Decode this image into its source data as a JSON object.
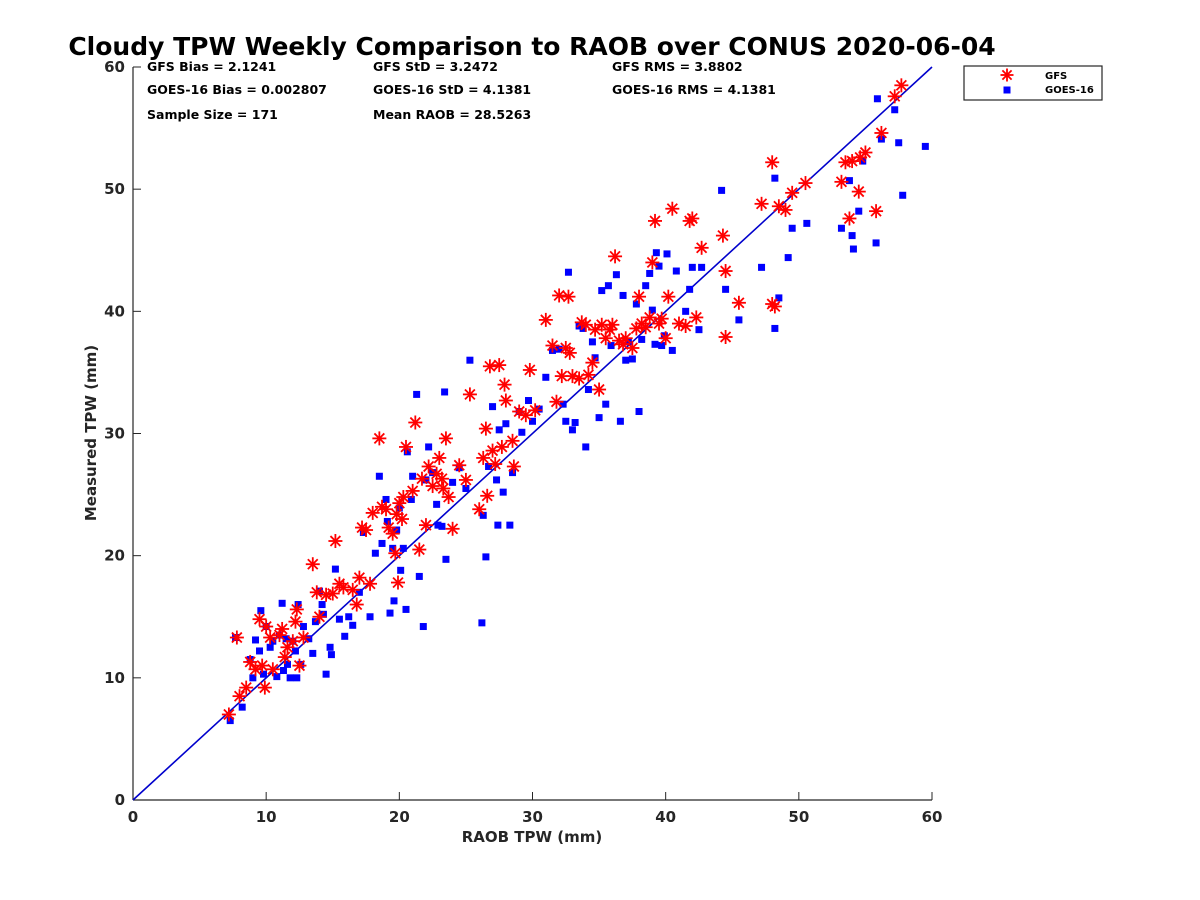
{
  "chart_data": {
    "type": "scatter",
    "title": "Cloudy TPW Weekly Comparison to RAOB over CONUS 2020-06-04",
    "xlabel": "RAOB TPW (mm)",
    "ylabel": "Measured TPW (mm)",
    "xlim": [
      0,
      60
    ],
    "ylim": [
      0,
      60
    ],
    "xticks": [
      "0",
      "10",
      "20",
      "30",
      "40",
      "50",
      "60"
    ],
    "yticks": [
      "0",
      "10",
      "20",
      "30",
      "40",
      "50",
      "60"
    ],
    "grid": false,
    "legend_position": "outside top-right",
    "stats": [
      [
        "GFS Bias = 2.1241",
        "GFS StD = 3.2472",
        "GFS RMS = 3.8802"
      ],
      [
        "GOES-16 Bias = 0.002807",
        "GOES-16 StD = 4.1381",
        "GOES-16 RMS = 4.1381"
      ],
      [
        "Sample Size = 171",
        "Mean RAOB = 28.5263",
        ""
      ]
    ],
    "reference_line": {
      "x": [
        0,
        60
      ],
      "y": [
        0,
        60
      ],
      "color": "#0000cc"
    },
    "series": [
      {
        "name": "GFS",
        "marker": "asterisk",
        "color": "#ff0000",
        "points": [
          [
            7.2,
            7.0
          ],
          [
            7.8,
            13.3
          ],
          [
            8.0,
            8.5
          ],
          [
            8.5,
            9.2
          ],
          [
            8.8,
            11.3
          ],
          [
            9.2,
            10.7
          ],
          [
            9.5,
            14.8
          ],
          [
            9.7,
            11.0
          ],
          [
            9.9,
            9.2
          ],
          [
            10.0,
            14.2
          ],
          [
            10.3,
            13.3
          ],
          [
            10.5,
            10.7
          ],
          [
            11.0,
            13.5
          ],
          [
            11.2,
            14.0
          ],
          [
            11.4,
            11.7
          ],
          [
            11.6,
            12.5
          ],
          [
            12.0,
            13.0
          ],
          [
            12.2,
            14.6
          ],
          [
            12.3,
            15.6
          ],
          [
            12.5,
            11.0
          ],
          [
            12.8,
            13.3
          ],
          [
            13.5,
            19.3
          ],
          [
            13.8,
            17.0
          ],
          [
            14.0,
            15.0
          ],
          [
            14.5,
            16.8
          ],
          [
            15.0,
            16.9
          ],
          [
            15.2,
            21.2
          ],
          [
            15.5,
            17.7
          ],
          [
            15.8,
            17.4
          ],
          [
            16.5,
            17.2
          ],
          [
            16.8,
            16.0
          ],
          [
            17.0,
            18.2
          ],
          [
            17.2,
            22.3
          ],
          [
            17.5,
            22.1
          ],
          [
            17.8,
            17.7
          ],
          [
            18.0,
            23.5
          ],
          [
            18.5,
            29.6
          ],
          [
            18.7,
            24.0
          ],
          [
            19.0,
            23.8
          ],
          [
            19.2,
            22.3
          ],
          [
            19.5,
            21.8
          ],
          [
            19.7,
            20.2
          ],
          [
            19.8,
            23.4
          ],
          [
            19.9,
            17.8
          ],
          [
            20.0,
            24.3
          ],
          [
            20.2,
            23.0
          ],
          [
            20.3,
            24.8
          ],
          [
            20.5,
            28.9
          ],
          [
            21.0,
            25.3
          ],
          [
            21.2,
            30.9
          ],
          [
            21.5,
            20.5
          ],
          [
            21.7,
            26.3
          ],
          [
            22.0,
            22.5
          ],
          [
            22.2,
            27.3
          ],
          [
            22.5,
            25.7
          ],
          [
            22.8,
            26.7
          ],
          [
            23.0,
            28.0
          ],
          [
            23.2,
            26.3
          ],
          [
            23.3,
            25.5
          ],
          [
            23.5,
            29.6
          ],
          [
            23.7,
            24.8
          ],
          [
            24.0,
            22.2
          ],
          [
            24.5,
            27.4
          ],
          [
            25.0,
            26.2
          ],
          [
            25.3,
            33.2
          ],
          [
            26.0,
            23.8
          ],
          [
            26.3,
            28.0
          ],
          [
            26.5,
            30.4
          ],
          [
            26.6,
            24.9
          ],
          [
            26.8,
            35.5
          ],
          [
            27.0,
            28.6
          ],
          [
            27.2,
            27.5
          ],
          [
            27.5,
            35.6
          ],
          [
            27.7,
            28.9
          ],
          [
            27.9,
            34.0
          ],
          [
            28.0,
            32.7
          ],
          [
            28.5,
            29.4
          ],
          [
            28.6,
            27.3
          ],
          [
            29.0,
            31.8
          ],
          [
            29.5,
            31.5
          ],
          [
            29.8,
            35.2
          ],
          [
            30.2,
            31.9
          ],
          [
            31.0,
            39.3
          ],
          [
            31.5,
            37.2
          ],
          [
            31.8,
            32.6
          ],
          [
            32.0,
            41.3
          ],
          [
            32.2,
            34.7
          ],
          [
            32.5,
            37.0
          ],
          [
            32.7,
            41.2
          ],
          [
            32.8,
            36.6
          ],
          [
            33.0,
            34.7
          ],
          [
            33.5,
            34.5
          ],
          [
            33.7,
            39.1
          ],
          [
            34.0,
            38.9
          ],
          [
            34.2,
            34.8
          ],
          [
            34.5,
            35.8
          ],
          [
            34.7,
            38.5
          ],
          [
            35.0,
            33.6
          ],
          [
            35.2,
            38.9
          ],
          [
            35.5,
            37.8
          ],
          [
            35.8,
            38.5
          ],
          [
            36.0,
            38.9
          ],
          [
            36.2,
            44.5
          ],
          [
            36.5,
            37.6
          ],
          [
            36.8,
            37.3
          ],
          [
            37.0,
            37.8
          ],
          [
            37.5,
            37.0
          ],
          [
            37.8,
            38.6
          ],
          [
            38.0,
            41.2
          ],
          [
            38.2,
            39.0
          ],
          [
            38.5,
            38.7
          ],
          [
            38.8,
            39.5
          ],
          [
            39.0,
            44.0
          ],
          [
            39.2,
            47.4
          ],
          [
            39.5,
            39.0
          ],
          [
            39.7,
            39.4
          ],
          [
            40.0,
            37.8
          ],
          [
            40.2,
            41.2
          ],
          [
            40.5,
            48.4
          ],
          [
            41.0,
            39.0
          ],
          [
            41.5,
            38.8
          ],
          [
            41.8,
            47.4
          ],
          [
            42.0,
            47.6
          ],
          [
            42.3,
            39.5
          ],
          [
            42.7,
            45.2
          ],
          [
            44.3,
            46.2
          ],
          [
            44.5,
            43.3
          ],
          [
            44.5,
            37.9
          ],
          [
            45.5,
            40.7
          ],
          [
            47.2,
            48.8
          ],
          [
            48.0,
            52.2
          ],
          [
            48.0,
            40.6
          ],
          [
            48.2,
            40.4
          ],
          [
            48.5,
            48.6
          ],
          [
            49.0,
            48.3
          ],
          [
            49.5,
            49.7
          ],
          [
            50.5,
            50.5
          ],
          [
            53.2,
            50.6
          ],
          [
            53.5,
            52.2
          ],
          [
            53.8,
            47.6
          ],
          [
            54.0,
            52.3
          ],
          [
            54.5,
            49.8
          ],
          [
            54.6,
            52.6
          ],
          [
            55.0,
            53.0
          ],
          [
            55.8,
            48.2
          ],
          [
            56.2,
            54.6
          ],
          [
            57.2,
            57.6
          ],
          [
            57.7,
            58.5
          ]
        ]
      },
      {
        "name": "GOES-16",
        "marker": "square",
        "color": "#0000ff",
        "points": [
          [
            7.3,
            6.5
          ],
          [
            7.7,
            13.3
          ],
          [
            8.2,
            7.6
          ],
          [
            8.8,
            11.5
          ],
          [
            9.0,
            10.0
          ],
          [
            9.2,
            13.1
          ],
          [
            9.5,
            12.2
          ],
          [
            9.6,
            15.5
          ],
          [
            9.8,
            10.3
          ],
          [
            10.0,
            14.2
          ],
          [
            10.3,
            12.5
          ],
          [
            10.5,
            13.0
          ],
          [
            10.8,
            10.1
          ],
          [
            11.0,
            13.5
          ],
          [
            11.2,
            16.1
          ],
          [
            11.3,
            10.6
          ],
          [
            11.5,
            13.2
          ],
          [
            11.6,
            11.1
          ],
          [
            11.8,
            10.0
          ],
          [
            12.0,
            13.0
          ],
          [
            12.2,
            12.2
          ],
          [
            12.3,
            10.0
          ],
          [
            12.4,
            16.0
          ],
          [
            12.6,
            11.1
          ],
          [
            12.8,
            14.2
          ],
          [
            13.2,
            13.2
          ],
          [
            13.5,
            12.0
          ],
          [
            13.7,
            14.6
          ],
          [
            14.0,
            17.1
          ],
          [
            14.2,
            16.0
          ],
          [
            14.3,
            15.2
          ],
          [
            14.5,
            10.3
          ],
          [
            14.8,
            12.5
          ],
          [
            14.9,
            11.9
          ],
          [
            15.2,
            18.9
          ],
          [
            15.5,
            14.8
          ],
          [
            15.9,
            13.4
          ],
          [
            16.2,
            15.0
          ],
          [
            16.5,
            14.3
          ],
          [
            17.0,
            17.0
          ],
          [
            17.3,
            21.9
          ],
          [
            17.8,
            15.0
          ],
          [
            18.2,
            20.2
          ],
          [
            18.5,
            26.5
          ],
          [
            18.7,
            21.0
          ],
          [
            19.0,
            24.6
          ],
          [
            19.1,
            22.8
          ],
          [
            19.3,
            15.3
          ],
          [
            19.5,
            20.6
          ],
          [
            19.6,
            16.3
          ],
          [
            19.8,
            22.1
          ],
          [
            20.0,
            23.9
          ],
          [
            20.1,
            18.8
          ],
          [
            20.3,
            20.6
          ],
          [
            20.5,
            15.6
          ],
          [
            20.6,
            28.5
          ],
          [
            20.9,
            24.6
          ],
          [
            21.0,
            26.5
          ],
          [
            21.3,
            33.2
          ],
          [
            21.5,
            18.3
          ],
          [
            21.8,
            14.2
          ],
          [
            22.0,
            26.2
          ],
          [
            22.2,
            28.9
          ],
          [
            22.5,
            26.8
          ],
          [
            22.8,
            24.2
          ],
          [
            22.9,
            22.5
          ],
          [
            23.2,
            22.4
          ],
          [
            23.4,
            33.4
          ],
          [
            23.5,
            19.7
          ],
          [
            24.0,
            26.0
          ],
          [
            24.5,
            27.2
          ],
          [
            25.0,
            25.5
          ],
          [
            25.3,
            36.0
          ],
          [
            26.2,
            14.5
          ],
          [
            26.3,
            23.3
          ],
          [
            26.5,
            19.9
          ],
          [
            26.7,
            27.3
          ],
          [
            27.0,
            32.2
          ],
          [
            27.3,
            26.2
          ],
          [
            27.4,
            22.5
          ],
          [
            27.5,
            30.3
          ],
          [
            27.8,
            25.2
          ],
          [
            28.0,
            30.8
          ],
          [
            28.3,
            22.5
          ],
          [
            28.5,
            26.8
          ],
          [
            29.0,
            31.8
          ],
          [
            29.2,
            30.1
          ],
          [
            29.7,
            32.7
          ],
          [
            30.0,
            31.0
          ],
          [
            30.5,
            32.0
          ],
          [
            31.0,
            34.6
          ],
          [
            31.5,
            36.8
          ],
          [
            32.0,
            36.9
          ],
          [
            32.3,
            32.4
          ],
          [
            32.5,
            31.0
          ],
          [
            32.7,
            43.2
          ],
          [
            33.0,
            30.3
          ],
          [
            33.2,
            30.9
          ],
          [
            33.5,
            38.8
          ],
          [
            33.8,
            38.6
          ],
          [
            34.0,
            28.9
          ],
          [
            34.2,
            33.6
          ],
          [
            34.5,
            37.5
          ],
          [
            34.7,
            36.2
          ],
          [
            35.0,
            31.3
          ],
          [
            35.2,
            41.7
          ],
          [
            35.5,
            32.4
          ],
          [
            35.7,
            42.1
          ],
          [
            35.9,
            37.2
          ],
          [
            36.3,
            43.0
          ],
          [
            36.6,
            31.0
          ],
          [
            36.8,
            41.3
          ],
          [
            37.0,
            36.0
          ],
          [
            37.2,
            37.5
          ],
          [
            37.5,
            36.1
          ],
          [
            37.8,
            40.6
          ],
          [
            38.0,
            31.8
          ],
          [
            38.2,
            37.7
          ],
          [
            38.5,
            42.1
          ],
          [
            38.8,
            43.1
          ],
          [
            39.0,
            40.1
          ],
          [
            39.2,
            37.3
          ],
          [
            39.3,
            44.8
          ],
          [
            39.5,
            43.7
          ],
          [
            39.7,
            37.2
          ],
          [
            39.9,
            38.0
          ],
          [
            40.1,
            44.7
          ],
          [
            40.5,
            36.8
          ],
          [
            40.8,
            43.3
          ],
          [
            41.5,
            40.0
          ],
          [
            41.8,
            41.8
          ],
          [
            42.0,
            43.6
          ],
          [
            42.5,
            38.5
          ],
          [
            42.7,
            43.6
          ],
          [
            44.2,
            49.9
          ],
          [
            44.5,
            41.8
          ],
          [
            45.5,
            39.3
          ],
          [
            47.2,
            43.6
          ],
          [
            48.2,
            38.6
          ],
          [
            48.2,
            50.9
          ],
          [
            48.5,
            41.1
          ],
          [
            49.2,
            44.4
          ],
          [
            49.5,
            46.8
          ],
          [
            50.6,
            47.2
          ],
          [
            53.2,
            46.8
          ],
          [
            53.8,
            50.7
          ],
          [
            54.0,
            46.2
          ],
          [
            54.1,
            45.1
          ],
          [
            54.5,
            48.2
          ],
          [
            54.8,
            52.3
          ],
          [
            55.8,
            45.6
          ],
          [
            55.9,
            57.4
          ],
          [
            56.2,
            54.1
          ],
          [
            57.2,
            56.5
          ],
          [
            57.5,
            53.8
          ],
          [
            57.8,
            49.5
          ],
          [
            59.5,
            53.5
          ]
        ]
      }
    ]
  }
}
